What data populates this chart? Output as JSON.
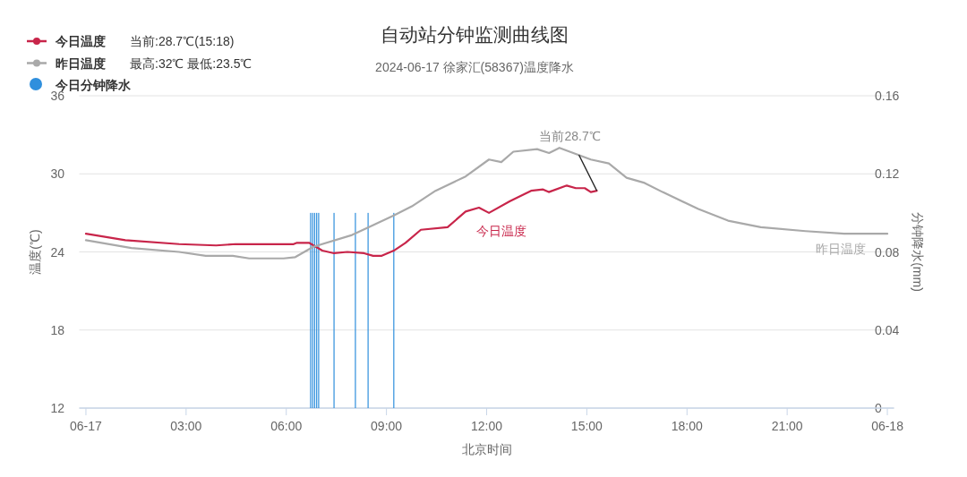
{
  "chart_data": {
    "type": "line",
    "title": "自动站分钟监测曲线图",
    "subtitle": "2024-06-17 徐家汇(58367)温度降水",
    "xlabel": "北京时间",
    "ylabel": "温度(℃)",
    "y2label": "分钟降水(mm)",
    "xlim": [
      -0.2,
      24.2
    ],
    "xticks": [
      {
        "value": 0,
        "label": "06-17"
      },
      {
        "value": 3,
        "label": "03:00"
      },
      {
        "value": 6,
        "label": "06:00"
      },
      {
        "value": 9,
        "label": "09:00"
      },
      {
        "value": 12,
        "label": "12:00"
      },
      {
        "value": 15,
        "label": "15:00"
      },
      {
        "value": 18,
        "label": "18:00"
      },
      {
        "value": 21,
        "label": "21:00"
      },
      {
        "value": 24,
        "label": "06-18"
      }
    ],
    "ylim": [
      12,
      36
    ],
    "yticks": [
      12,
      18,
      24,
      30,
      36
    ],
    "y2lim": [
      0,
      0.16
    ],
    "y2ticks": [
      0,
      0.04,
      0.08,
      0.12,
      0.16
    ],
    "grid": "y",
    "legend": "top left",
    "series": [
      {
        "name": "今日温度",
        "color": "#c8254a",
        "x": [
          0,
          1.18,
          2.79,
          3.9,
          4.48,
          6.22,
          6.32,
          6.68,
          7.08,
          7.43,
          7.83,
          8.33,
          8.6,
          8.86,
          9.22,
          9.57,
          10.03,
          10.83,
          11.37,
          11.77,
          12.07,
          12.7,
          13.33,
          13.69,
          13.86,
          14.4,
          14.67,
          14.94,
          15.12,
          15.3
        ],
        "values": [
          25.4,
          24.9,
          24.6,
          24.5,
          24.6,
          24.6,
          24.7,
          24.7,
          24.1,
          23.9,
          24.0,
          23.9,
          23.7,
          23.7,
          24.1,
          24.7,
          25.7,
          25.9,
          27.1,
          27.4,
          27.0,
          27.9,
          28.7,
          28.8,
          28.6,
          29.1,
          28.9,
          28.9,
          28.6,
          28.7
        ]
      },
      {
        "name": "昨日温度",
        "color": "#a9a9a9",
        "x": [
          0,
          1.36,
          2.79,
          3.59,
          4.4,
          4.89,
          5.92,
          6.27,
          6.81,
          7.97,
          9.22,
          9.76,
          10.47,
          11.37,
          12.07,
          12.44,
          12.8,
          13.51,
          13.87,
          14.18,
          15.12,
          15.66,
          16.19,
          16.73,
          17.27,
          18.34,
          19.23,
          20.21,
          21.55,
          22.71,
          24
        ],
        "values": [
          24.9,
          24.3,
          24.0,
          23.7,
          23.7,
          23.5,
          23.5,
          23.6,
          24.4,
          25.3,
          26.8,
          27.5,
          28.7,
          29.8,
          31.1,
          30.9,
          31.7,
          31.9,
          31.6,
          32.0,
          31.1,
          30.8,
          29.7,
          29.3,
          28.6,
          27.3,
          26.4,
          25.9,
          25.6,
          25.4,
          25.4
        ]
      },
      {
        "name": "今日分钟降水",
        "type": "bar",
        "axis": "y2",
        "color": "#2f8fdd",
        "x": [
          6.73,
          6.79,
          6.85,
          6.91,
          6.97,
          7.43,
          8.07,
          8.45,
          9.22
        ],
        "values": [
          0.1,
          0.1,
          0.1,
          0.1,
          0.1,
          0.1,
          0.1,
          0.1,
          0.1
        ]
      }
    ],
    "annotations": [
      "当前:28.7℃(15:18)",
      "最高:32℃ 最低:23.5℃",
      {
        "text": "当前28.7℃",
        "x": 15.3,
        "y": 28.7
      }
    ]
  }
}
